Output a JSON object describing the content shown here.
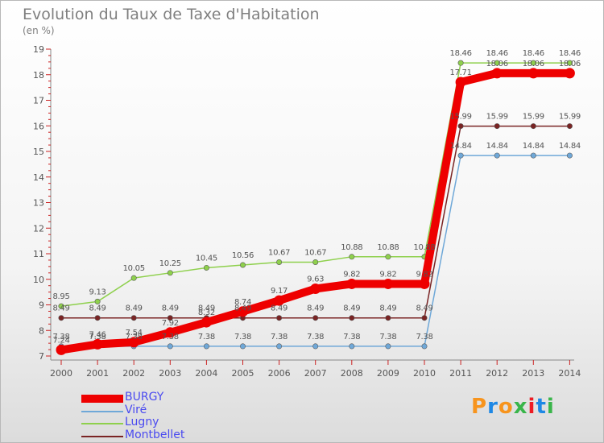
{
  "title": "Evolution du Taux de Taxe d'Habitation",
  "unit_label": "(en %)",
  "logo": {
    "text": "Proxiti",
    "letters": [
      "P",
      "r",
      "o",
      "x",
      "i",
      "t",
      "i"
    ],
    "colors": [
      "#f7941d",
      "#1e88e5",
      "#f7941d",
      "#39b54a",
      "#ed1c24",
      "#1e88e5",
      "#39b54a"
    ]
  },
  "chart_data": {
    "type": "line",
    "title": "Evolution du Taux de Taxe d'Habitation",
    "ylabel": "(en %)",
    "xlabel": "",
    "x": [
      "2000",
      "2001",
      "2002",
      "2003",
      "2004",
      "2005",
      "2006",
      "2007",
      "2008",
      "2009",
      "2010",
      "2011",
      "2012",
      "2013",
      "2014"
    ],
    "ylim": [
      7,
      19
    ],
    "yticks": [
      "7",
      "8",
      "9",
      "10",
      "11",
      "12",
      "13",
      "14",
      "15",
      "16",
      "17",
      "18",
      "19"
    ],
    "grid": false,
    "legend_position": "bottom-left",
    "series": [
      {
        "name": "BURGY",
        "color": "#ee0000",
        "values": [
          7.24,
          7.46,
          7.54,
          7.92,
          8.32,
          8.74,
          9.17,
          9.63,
          9.82,
          9.82,
          9.82,
          17.71,
          18.06,
          18.06,
          18.06
        ],
        "labels": [
          "7.24",
          "7.46",
          "7.54",
          "7.92",
          "8.32",
          "8.74",
          "9.17",
          "9.63",
          "9.82",
          "9.82",
          "9.82",
          "17.71",
          "18.06",
          "18.06",
          "18.06"
        ]
      },
      {
        "name": "Viré",
        "color": "#6fa8d8",
        "values": [
          7.38,
          7.38,
          7.38,
          7.38,
          7.38,
          7.38,
          7.38,
          7.38,
          7.38,
          7.38,
          7.38,
          14.84,
          14.84,
          14.84,
          14.84
        ],
        "labels": [
          "7.38",
          "7.38",
          "7.38",
          "7.38",
          "7.38",
          "7.38",
          "7.38",
          "7.38",
          "7.38",
          "7.38",
          "7.38",
          "14.84",
          "14.84",
          "14.84",
          "14.84"
        ]
      },
      {
        "name": "Lugny",
        "color": "#8ed04c",
        "values": [
          8.95,
          9.13,
          10.05,
          10.25,
          10.45,
          10.56,
          10.67,
          10.67,
          10.88,
          10.88,
          10.88,
          18.46,
          18.46,
          18.46,
          18.46
        ],
        "labels": [
          "8.95",
          "9.13",
          "10.05",
          "10.25",
          "10.45",
          "10.56",
          "10.67",
          "10.67",
          "10.88",
          "10.88",
          "10.88",
          "18.46",
          "18.46",
          "18.46",
          "18.46"
        ]
      },
      {
        "name": "Montbellet",
        "color": "#7a2424",
        "values": [
          8.49,
          8.49,
          8.49,
          8.49,
          8.49,
          8.49,
          8.49,
          8.49,
          8.49,
          8.49,
          8.49,
          15.99,
          15.99,
          15.99,
          15.99
        ],
        "labels": [
          "8.49",
          "8.49",
          "8.49",
          "8.49",
          "8.49",
          "8.49",
          "8.49",
          "8.49",
          "8.49",
          "8.49",
          "8.49",
          "15.99",
          "15.99",
          "15.99",
          "15.99"
        ]
      }
    ]
  }
}
